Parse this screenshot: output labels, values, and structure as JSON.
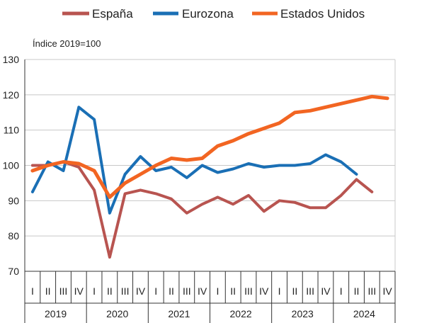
{
  "chart_data": {
    "type": "line",
    "unit_label": "Índice 2019=100",
    "ylim": [
      70,
      130
    ],
    "yticks": [
      70,
      80,
      90,
      100,
      110,
      120,
      130
    ],
    "quarters": [
      "I",
      "II",
      "III",
      "IV",
      "I",
      "II",
      "III",
      "IV",
      "I",
      "II",
      "III",
      "IV",
      "I",
      "II",
      "III",
      "IV",
      "I",
      "II",
      "III",
      "IV",
      "I",
      "II",
      "III",
      "IV"
    ],
    "years": [
      "2019",
      "2020",
      "2021",
      "2022",
      "2023",
      "2024"
    ],
    "legend_position": "top",
    "series": [
      {
        "name": "España",
        "color": "#b85450",
        "values": [
          100,
          100,
          101,
          99.5,
          93,
          74,
          92,
          93,
          92,
          90.5,
          86.5,
          89,
          91,
          89,
          91.5,
          87,
          90,
          89.5,
          88,
          88,
          91.5,
          96,
          92.5,
          null
        ]
      },
      {
        "name": "Eurozona",
        "color": "#1a6fb5",
        "values": [
          92.5,
          101,
          98.5,
          116.5,
          113,
          86.5,
          97.5,
          102.5,
          98.5,
          99.5,
          96.5,
          100,
          98,
          99,
          100.5,
          99.5,
          100,
          100,
          100.5,
          103,
          101,
          97.5,
          null,
          null
        ]
      },
      {
        "name": "Estados Unidos",
        "color": "#f26522",
        "values": [
          98.5,
          100,
          101,
          100.5,
          98.5,
          91,
          95,
          97.5,
          100,
          102,
          101.5,
          102,
          105.5,
          107,
          109,
          110.5,
          112,
          115,
          115.5,
          116.5,
          117.5,
          118.5,
          119.5,
          119
        ]
      }
    ]
  }
}
